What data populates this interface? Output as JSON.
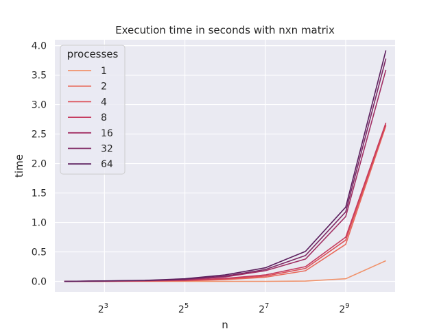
{
  "chart_data": {
    "type": "line",
    "title": "Execution time in seconds with nxn matrix",
    "xlabel": "n",
    "ylabel": "time",
    "x_scale": "log2",
    "x": [
      4,
      8,
      16,
      32,
      64,
      128,
      256,
      512,
      1024
    ],
    "xlim": [
      3.4,
      1200
    ],
    "xticks": [
      {
        "value": 8,
        "base": "2",
        "exp": "3"
      },
      {
        "value": 32,
        "base": "2",
        "exp": "5"
      },
      {
        "value": 128,
        "base": "2",
        "exp": "7"
      },
      {
        "value": 512,
        "base": "2",
        "exp": "9"
      }
    ],
    "ylim": [
      -0.18,
      4.1
    ],
    "yticks": [
      {
        "value": 0.0,
        "label": "0.0"
      },
      {
        "value": 0.5,
        "label": "0.5"
      },
      {
        "value": 1.0,
        "label": "1.0"
      },
      {
        "value": 1.5,
        "label": "1.5"
      },
      {
        "value": 2.0,
        "label": "2.0"
      },
      {
        "value": 2.5,
        "label": "2.5"
      },
      {
        "value": 3.0,
        "label": "3.0"
      },
      {
        "value": 3.5,
        "label": "3.5"
      },
      {
        "value": 4.0,
        "label": "4.0"
      }
    ],
    "grid": true,
    "background": "#eaeaf2",
    "legend_title": "processes",
    "legend_position": "upper-left",
    "series": [
      {
        "name": "1",
        "color": "#f0926b",
        "values": [
          0.0,
          0.0,
          0.0,
          0.0,
          0.0,
          0.0,
          0.005,
          0.045,
          0.35
        ]
      },
      {
        "name": "2",
        "color": "#e8695a",
        "values": [
          0.0,
          0.002,
          0.005,
          0.01,
          0.03,
          0.07,
          0.18,
          0.63,
          2.64
        ]
      },
      {
        "name": "4",
        "color": "#dc4f57",
        "values": [
          0.0,
          0.003,
          0.007,
          0.015,
          0.04,
          0.09,
          0.22,
          0.7,
          2.66
        ]
      },
      {
        "name": "8",
        "color": "#c53a5e",
        "values": [
          0.0,
          0.004,
          0.009,
          0.02,
          0.05,
          0.11,
          0.25,
          0.75,
          2.69
        ]
      },
      {
        "name": "16",
        "color": "#a23064",
        "values": [
          0.0,
          0.006,
          0.012,
          0.028,
          0.075,
          0.18,
          0.38,
          1.1,
          3.59
        ]
      },
      {
        "name": "32",
        "color": "#7e2864",
        "values": [
          0.0,
          0.007,
          0.015,
          0.035,
          0.09,
          0.2,
          0.44,
          1.18,
          3.78
        ]
      },
      {
        "name": "64",
        "color": "#5c1f5e",
        "values": [
          0.0,
          0.008,
          0.018,
          0.045,
          0.11,
          0.23,
          0.51,
          1.26,
          3.92
        ]
      }
    ]
  }
}
